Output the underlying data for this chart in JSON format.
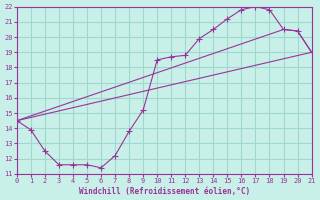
{
  "xlabel": "Windchill (Refroidissement éolien,°C)",
  "bg_color": "#c8f0e8",
  "line_color": "#993399",
  "grid_color": "#a0d8d0",
  "xlim": [
    0,
    21
  ],
  "ylim": [
    11,
    22
  ],
  "xticks": [
    0,
    1,
    2,
    3,
    4,
    5,
    6,
    7,
    8,
    9,
    10,
    11,
    12,
    13,
    14,
    15,
    16,
    17,
    18,
    19,
    20,
    21
  ],
  "yticks": [
    11,
    12,
    13,
    14,
    15,
    16,
    17,
    18,
    19,
    20,
    21,
    22
  ],
  "line1_x": [
    0,
    1,
    2,
    3,
    4,
    5,
    6,
    7,
    8,
    9,
    10,
    11,
    12,
    13,
    14,
    15,
    16,
    17,
    18,
    19,
    20,
    21
  ],
  "line1_y": [
    14.5,
    13.9,
    12.5,
    11.6,
    11.6,
    11.6,
    11.4,
    12.2,
    13.8,
    15.2,
    18.5,
    18.7,
    18.8,
    19.9,
    20.5,
    21.2,
    21.8,
    22.0,
    21.8,
    20.5,
    20.4,
    19.0
  ],
  "line2_x": [
    0,
    21
  ],
  "line2_y": [
    14.5,
    19.0
  ],
  "line3_x": [
    0,
    19,
    20,
    21
  ],
  "line3_y": [
    14.5,
    20.5,
    20.4,
    19.0
  ]
}
